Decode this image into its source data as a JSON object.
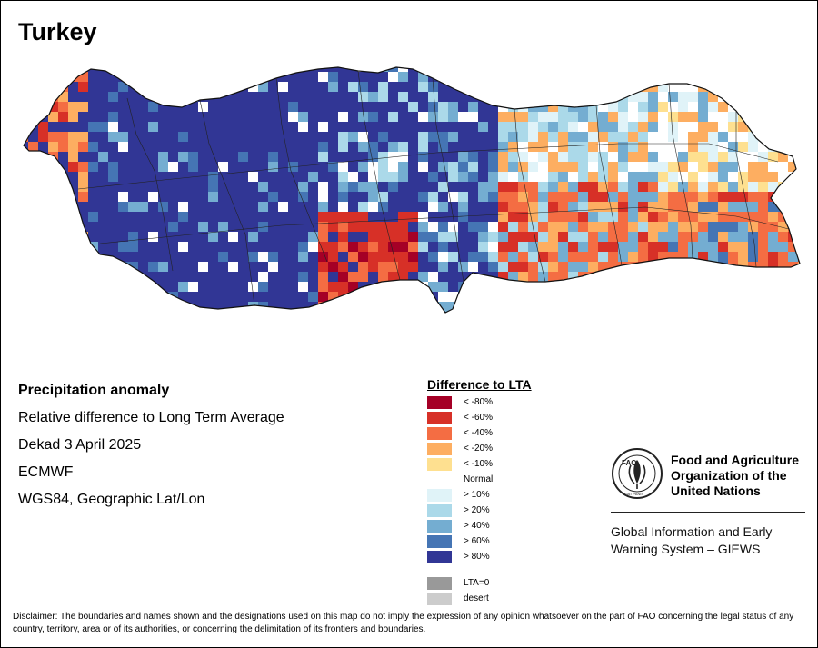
{
  "title": "Turkey",
  "info": {
    "line1": "Precipitation anomaly",
    "line2": "Relative difference to Long Term Average",
    "line3": "Dekad 3 April 2025",
    "line4": "ECMWF",
    "line5": "WGS84, Geographic Lat/Lon"
  },
  "legend": {
    "title": "Difference to LTA",
    "items": [
      {
        "label": "< -80%",
        "color": "#a50026"
      },
      {
        "label": "< -60%",
        "color": "#d73027"
      },
      {
        "label": "< -40%",
        "color": "#f46d43"
      },
      {
        "label": "< -20%",
        "color": "#fdae61"
      },
      {
        "label": "< -10%",
        "color": "#fee090"
      },
      {
        "label": "Normal",
        "color": "#ffffff"
      },
      {
        "label": "> 10%",
        "color": "#e0f3f8"
      },
      {
        "label": "> 20%",
        "color": "#abd9e9"
      },
      {
        "label": "> 40%",
        "color": "#74add1"
      },
      {
        "label": "> 60%",
        "color": "#4575b4"
      },
      {
        "label": "> 80%",
        "color": "#313695"
      }
    ],
    "extra": [
      {
        "label": "LTA=0",
        "color": "#999999"
      },
      {
        "label": "desert",
        "color": "#cccccc"
      }
    ]
  },
  "fao": {
    "name_line1": "Food and Agriculture",
    "name_line2": "Organization of the",
    "name_line3": "United Nations",
    "logo_text": "FAO",
    "logo_motto": "FIAT PANIS",
    "giews_line1": "Global Information and Early",
    "giews_line2": "Warning System – GIEWS"
  },
  "disclaimer": "Disclaimer: The boundaries and names shown and the designations used on this map do not imply the expression of any opinion whatsoever on the part of FAO concerning the legal status of any country, territory, area or of its authorities, or concerning the delimitation of its frontiers and boundaries."
}
